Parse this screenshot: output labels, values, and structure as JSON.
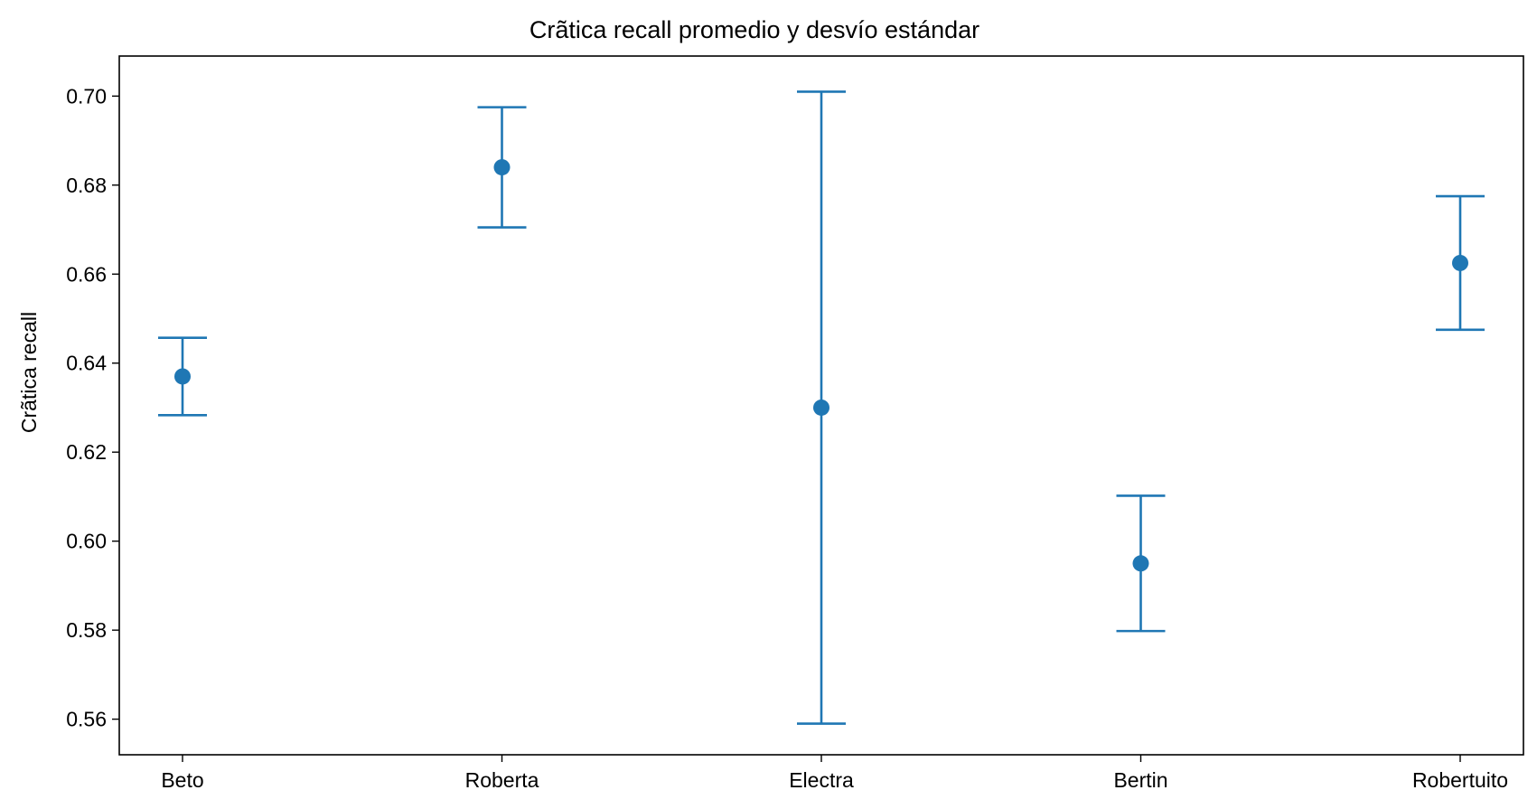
{
  "chart_data": {
    "type": "scatter",
    "title": "Crã­tica recall promedio y desvío estándar",
    "xlabel": "",
    "ylabel": "Crã­tica recall",
    "categories": [
      "Beto",
      "Roberta",
      "Electra",
      "Bertin",
      "Robertuito"
    ],
    "series": [
      {
        "values": [
          0.637,
          0.684,
          0.63,
          0.595,
          0.6625
        ],
        "error": [
          0.0087,
          0.0135,
          0.071,
          0.0152,
          0.015
        ]
      }
    ],
    "ylim": [
      0.552,
      0.709
    ],
    "yticks": [
      0.56,
      0.58,
      0.6,
      0.62,
      0.64,
      0.66,
      0.68,
      0.7
    ],
    "ytick_labels": [
      "0.56",
      "0.58",
      "0.60",
      "0.62",
      "0.64",
      "0.66",
      "0.68",
      "0.70"
    ],
    "grid": false,
    "legend": "none",
    "colors": {
      "series": "#1f77b4",
      "axes": "#000000",
      "background": "#ffffff"
    }
  }
}
